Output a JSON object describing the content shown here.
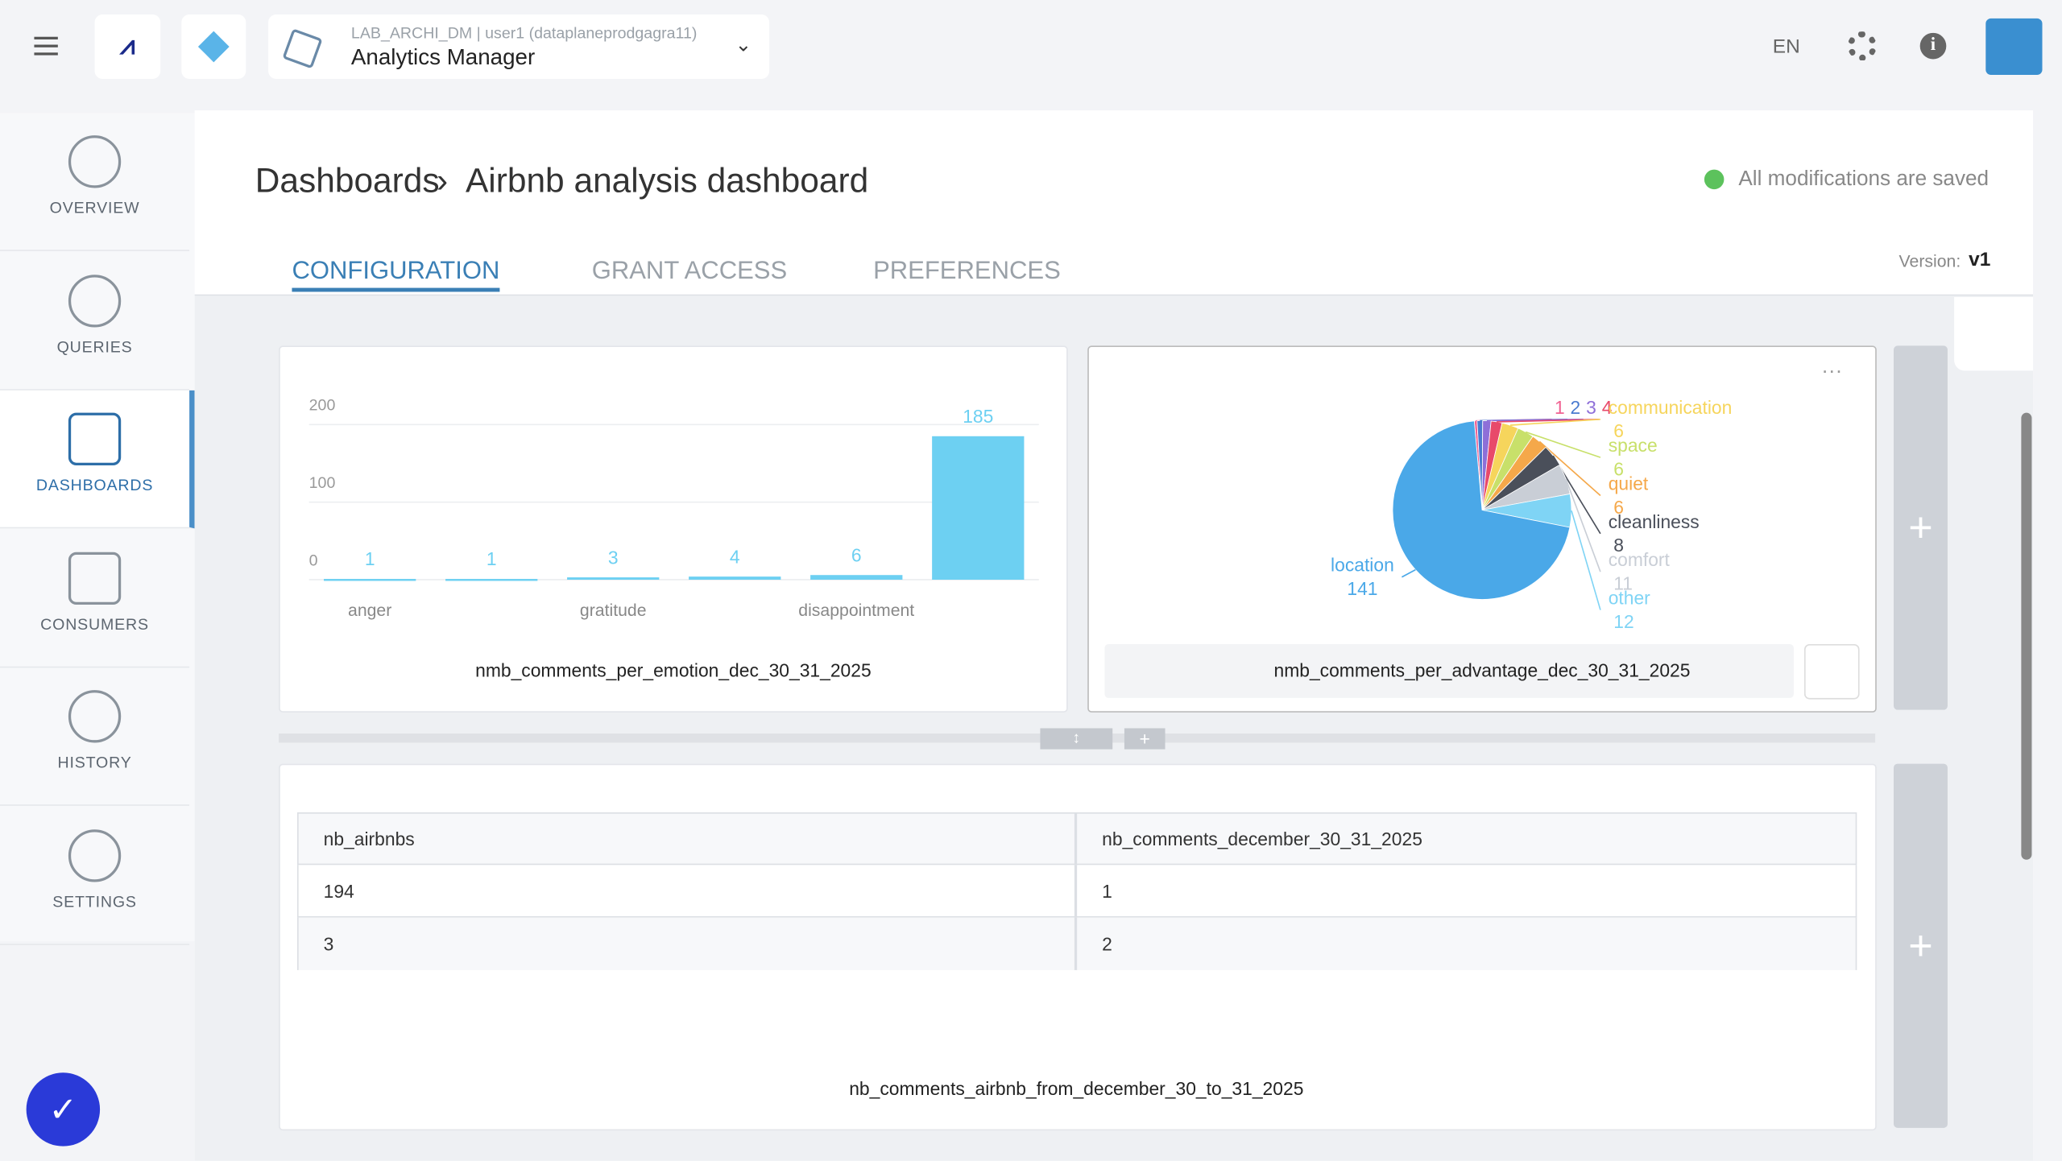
{
  "header": {
    "project": "LAB_ARCHI_DM | user1 (dataplaneprodgagra11)",
    "app": "Analytics Manager",
    "language": "EN"
  },
  "sidebar": {
    "items": [
      "OVERVIEW",
      "QUERIES",
      "DASHBOARDS",
      "CONSUMERS",
      "HISTORY",
      "SETTINGS"
    ],
    "active": 2
  },
  "page": {
    "breadcrumb": "Dashboards",
    "title": "Airbnb analysis dashboard",
    "status": "All modifications are saved",
    "tabs": [
      "CONFIGURATION",
      "GRANT ACCESS",
      "PREFERENCES"
    ],
    "active_tab": 0,
    "version_label": "Version:",
    "version": "v1"
  },
  "widgets": [
    {
      "type": "bar",
      "title": "nmb_comments_per_emotion_dec_30_31_2025",
      "categories": [
        "anger",
        null,
        "gratitude",
        null,
        "disappointment",
        null
      ],
      "values": [
        1,
        1,
        3,
        4,
        6,
        185
      ],
      "color": "#6dd0f2",
      "ylim": [
        0,
        200
      ],
      "yticks": [
        0,
        100,
        200
      ],
      "grid": true
    },
    {
      "type": "pie",
      "title": "nmb_comments_per_advantage_dec_30_31_2025",
      "categories": [
        null,
        null,
        null,
        null,
        "communication",
        "space",
        "quiet",
        "cleanliness",
        "comfort",
        "other",
        "location"
      ],
      "values": [
        1,
        2,
        3,
        4,
        6,
        6,
        6,
        8,
        11,
        12,
        141
      ],
      "colors": [
        "#f06292",
        "#4a7bd0",
        "#8e6fd8",
        "#e84a6a",
        "#f6d55c",
        "#c8e06a",
        "#f5a84a",
        "#4a4f5a",
        "#c9ced6",
        "#7fd4f5",
        "#4aa8e8"
      ]
    },
    {
      "type": "table",
      "title": "nb_comments_airbnb_from_december_30_to_31_2025",
      "columns": [
        "nb_airbnbs",
        "nb_comments_december_30_31_2025"
      ],
      "rows": [
        [
          "194",
          "1"
        ],
        [
          "3",
          "2"
        ]
      ]
    }
  ]
}
